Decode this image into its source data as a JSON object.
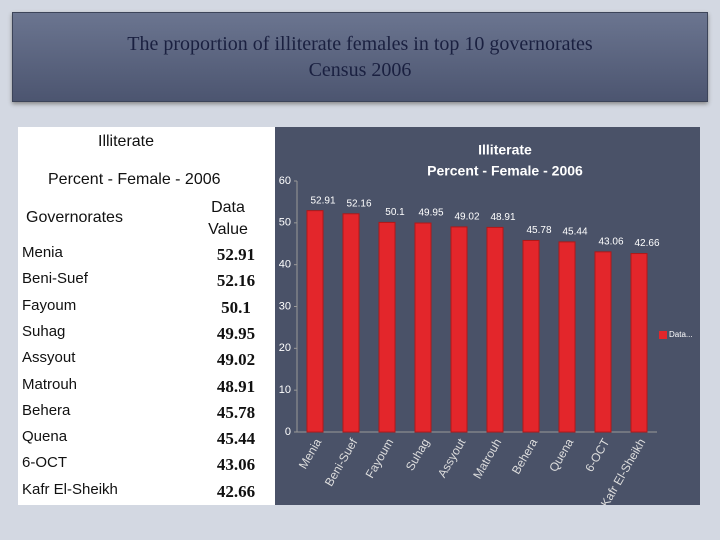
{
  "header": {
    "title": [
      "The proportion of illiterate females in top 10 governorates",
      "Census 2006"
    ]
  },
  "table": {
    "title": "Illiterate",
    "subtitle": "Percent - Female - 2006",
    "columns": [
      "Governorates",
      "Data Value"
    ],
    "rows": [
      [
        "Menia",
        52.91
      ],
      [
        "Beni-Suef",
        52.16
      ],
      [
        "Fayoum",
        50.1
      ],
      [
        "Suhag",
        49.95
      ],
      [
        "Assyout",
        49.02
      ],
      [
        "Matrouh",
        48.91
      ],
      [
        "Behera",
        45.78
      ],
      [
        "Quena",
        45.44
      ],
      [
        "6-OCT",
        43.06
      ],
      [
        "Kafr El-Sheikh",
        42.66
      ]
    ]
  },
  "chart_data": {
    "type": "bar",
    "title": "Illiterate",
    "subtitle": "Percent - Female - 2006",
    "categories": [
      "Menia",
      "Beni-Suef",
      "Fayoum",
      "Suhag",
      "Assyout",
      "Matrouh",
      "Behera",
      "Quena",
      "6-OCT",
      "Kafr El-Sheikh"
    ],
    "series": [
      {
        "name": "Data...",
        "color": "#e3262b",
        "values": [
          52.91,
          52.16,
          50.1,
          49.95,
          49.02,
          48.91,
          45.78,
          45.44,
          43.06,
          42.66
        ]
      }
    ],
    "ylim": [
      0,
      60
    ],
    "yticks": [
      0,
      10,
      20,
      30,
      40,
      50,
      60
    ],
    "legend": "right"
  }
}
